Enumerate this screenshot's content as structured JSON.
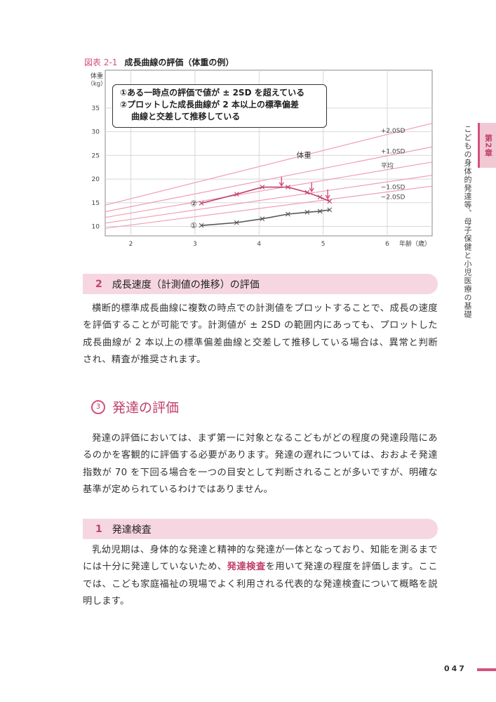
{
  "figure": {
    "number": "図表 2-1",
    "title": "成長曲線の評価（体重の例）"
  },
  "callout": {
    "line1": "①ある一時点の評価で値が ± 2SD を超えている",
    "line2": "②プロットした成長曲線が 2 本以上の標準偏差",
    "line3": "曲線と交差して推移している"
  },
  "chart_data": {
    "type": "line",
    "ylabel": "体重（kg）",
    "xlabel": "年齢（歳）",
    "xlim": [
      1.6,
      6.7
    ],
    "ylim": [
      8,
      43
    ],
    "x_ticks": [
      "2",
      "3",
      "4",
      "5",
      "6"
    ],
    "y_ticks": [
      "10",
      "15",
      "20",
      "25",
      "30",
      "35"
    ],
    "grid": true,
    "reference_curves": [
      {
        "name": "+2.0SD",
        "x": [
          1.6,
          6.7
        ],
        "y": [
          14.5,
          31.8
        ]
      },
      {
        "name": "+1.0SD",
        "x": [
          1.6,
          6.7
        ],
        "y": [
          13.1,
          26.8
        ]
      },
      {
        "name": "平均",
        "x": [
          1.6,
          6.7
        ],
        "y": [
          11.9,
          23.6
        ]
      },
      {
        "name": "−1.0SD",
        "x": [
          1.6,
          6.7
        ],
        "y": [
          10.7,
          20.8
        ]
      },
      {
        "name": "−2.0SD",
        "x": [
          1.6,
          6.7
        ],
        "y": [
          9.6,
          18.5
        ]
      }
    ],
    "series": [
      {
        "name": "②",
        "x": [
          3.1,
          3.65,
          4.05,
          4.45,
          4.75,
          4.95,
          5.1
        ],
        "y": [
          14.9,
          16.8,
          18.3,
          18.3,
          17.2,
          16.2,
          15.3
        ]
      },
      {
        "name": "①",
        "x": [
          3.1,
          3.65,
          4.05,
          4.45,
          4.75,
          4.95,
          5.1
        ],
        "y": [
          10.2,
          10.8,
          11.6,
          12.6,
          13.0,
          13.2,
          13.5
        ]
      }
    ],
    "annotations": [
      {
        "text": "体重",
        "x": 4.7,
        "y": 24.5
      },
      {
        "text": "↓",
        "x": 4.35,
        "y": 20.5
      },
      {
        "text": "↓",
        "x": 4.82,
        "y": 19.3
      },
      {
        "text": "↓",
        "x": 5.07,
        "y": 17.8
      }
    ]
  },
  "side": {
    "chapter": "第2章",
    "title": "こどもの身体的発達等、母子保健と小児医療の基礎"
  },
  "subsection1": {
    "number": "2",
    "title": "成長速度（計測値の推移）の評価"
  },
  "paragraph1": "横断的標準成長曲線に複数の時点での計測値をプロットすることで、成長の速度を評価することが可能です。計測値が ± 2SD の範囲内にあっても、プロットした成長曲線が 2 本以上の標準偏差曲線と交差して推移している場合は、異常と判断され、精査が推奨されます。",
  "section3": {
    "number": "3",
    "title": "発達の評価"
  },
  "paragraph2": "発達の評価においては、まず第一に対象となるこどもがどの程度の発達段階にあるのかを客観的に評価する必要があります。発達の遅れについては、おおよそ発達指数が 70 を下回る場合を一つの目安として判断されることが多いですが、明確な基準が定められているわけではありません。",
  "subsection2": {
    "number": "1",
    "title": "発達検査"
  },
  "paragraph3": {
    "before": "乳幼児期は、身体的な発達と精神的な発達が一体となっており、知能を測るまでには十分に発達していないため、",
    "highlight": "発達検査",
    "after": "を用いて発達の程度を評価します。ここでは、こども家庭福祉の現場でよく利用される代表的な発達検査について概略を説明します。"
  },
  "page_number": "047",
  "colors": {
    "accent": "#d6517a",
    "series2": "#c0416a",
    "series1": "#555555",
    "reference": "#ef9fb4"
  }
}
